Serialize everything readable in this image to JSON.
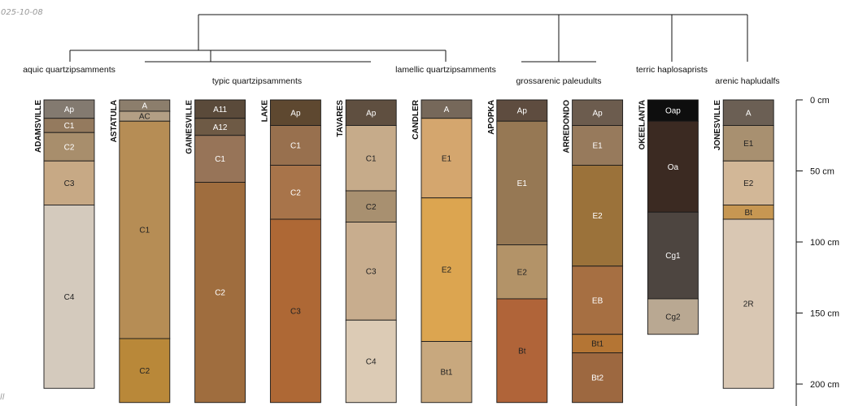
{
  "corner_text_top": "025-10-08",
  "corner_text_bottom": "ll",
  "depth_axis": {
    "max_cm": 213,
    "ticks": [
      {
        "value": 0,
        "label": "0 cm"
      },
      {
        "value": 50,
        "label": "50 cm"
      },
      {
        "value": 100,
        "label": "100 cm"
      },
      {
        "value": 150,
        "label": "150 cm"
      },
      {
        "value": 200,
        "label": "200 cm"
      }
    ]
  },
  "groups": [
    {
      "name": "aquic quartzipsamments"
    },
    {
      "name": "typic quartzipsamments"
    },
    {
      "name": "lamellic quartzipsamments"
    },
    {
      "name": "grossarenic paleudults"
    },
    {
      "name": "terric haplosaprists"
    },
    {
      "name": "arenic hapludalfs"
    }
  ],
  "profiles": [
    {
      "name": "ADAMSVILLE",
      "horizons": [
        {
          "name": "Ap",
          "top": 0,
          "bottom": 13,
          "color": "#837a70",
          "text_color": "#ffffff"
        },
        {
          "name": "C1",
          "top": 13,
          "bottom": 23,
          "color": "#947a5e",
          "text_color": "#ffffff"
        },
        {
          "name": "C2",
          "top": 23,
          "bottom": 43,
          "color": "#a88e6c",
          "text_color": "#ffffff"
        },
        {
          "name": "C3",
          "top": 43,
          "bottom": 74,
          "color": "#c7a985",
          "text_color": "#222222"
        },
        {
          "name": "C4",
          "top": 74,
          "bottom": 203,
          "color": "#d4cabd",
          "text_color": "#222222"
        }
      ]
    },
    {
      "name": "ASTATULA",
      "horizons": [
        {
          "name": "A",
          "top": 0,
          "bottom": 8,
          "color": "#8c7e6c",
          "text_color": "#ffffff"
        },
        {
          "name": "AC",
          "top": 8,
          "bottom": 15,
          "color": "#b39f85",
          "text_color": "#222222"
        },
        {
          "name": "C1",
          "top": 15,
          "bottom": 168,
          "color": "#b68d55",
          "text_color": "#222222"
        },
        {
          "name": "C2",
          "top": 168,
          "bottom": 213,
          "color": "#b98839",
          "text_color": "#222222"
        }
      ]
    },
    {
      "name": "GAINESVILLE",
      "horizons": [
        {
          "name": "A11",
          "top": 0,
          "bottom": 13,
          "color": "#5a4a3a",
          "text_color": "#ffffff"
        },
        {
          "name": "A12",
          "top": 13,
          "bottom": 25,
          "color": "#6e5a45",
          "text_color": "#ffffff"
        },
        {
          "name": "C1",
          "top": 25,
          "bottom": 58,
          "color": "#977458",
          "text_color": "#ffffff"
        },
        {
          "name": "C2",
          "top": 58,
          "bottom": 213,
          "color": "#9f6d3e",
          "text_color": "#ffffff"
        }
      ]
    },
    {
      "name": "LAKE",
      "horizons": [
        {
          "name": "Ap",
          "top": 0,
          "bottom": 18,
          "color": "#5e4830",
          "text_color": "#ffffff"
        },
        {
          "name": "C1",
          "top": 18,
          "bottom": 46,
          "color": "#98704e",
          "text_color": "#ffffff"
        },
        {
          "name": "C2",
          "top": 46,
          "bottom": 84,
          "color": "#a8744a",
          "text_color": "#ffffff"
        },
        {
          "name": "C3",
          "top": 84,
          "bottom": 213,
          "color": "#ae6835",
          "text_color": "#222222"
        }
      ]
    },
    {
      "name": "TAVARES",
      "horizons": [
        {
          "name": "Ap",
          "top": 0,
          "bottom": 18,
          "color": "#5f4f40",
          "text_color": "#ffffff"
        },
        {
          "name": "C1",
          "top": 18,
          "bottom": 64,
          "color": "#c6ab8a",
          "text_color": "#222222"
        },
        {
          "name": "C2",
          "top": 64,
          "bottom": 86,
          "color": "#a89070",
          "text_color": "#222222"
        },
        {
          "name": "C3",
          "top": 86,
          "bottom": 155,
          "color": "#c8ad8e",
          "text_color": "#222222"
        },
        {
          "name": "C4",
          "top": 155,
          "bottom": 213,
          "color": "#dccbb5",
          "text_color": "#222222"
        }
      ]
    },
    {
      "name": "CANDLER",
      "horizons": [
        {
          "name": "A",
          "top": 0,
          "bottom": 13,
          "color": "#76685a",
          "text_color": "#ffffff"
        },
        {
          "name": "E1",
          "top": 13,
          "bottom": 69,
          "color": "#d4a66e",
          "text_color": "#222222"
        },
        {
          "name": "E2",
          "top": 69,
          "bottom": 170,
          "color": "#dca550",
          "text_color": "#222222"
        },
        {
          "name": "Bt1",
          "top": 170,
          "bottom": 213,
          "color": "#c8a87e",
          "text_color": "#222222"
        }
      ]
    },
    {
      "name": "APOPKA",
      "horizons": [
        {
          "name": "Ap",
          "top": 0,
          "bottom": 15,
          "color": "#5e4c3f",
          "text_color": "#ffffff"
        },
        {
          "name": "E1",
          "top": 15,
          "bottom": 102,
          "color": "#967854",
          "text_color": "#ffffff"
        },
        {
          "name": "E2",
          "top": 102,
          "bottom": 140,
          "color": "#b39368",
          "text_color": "#222222"
        },
        {
          "name": "Bt",
          "top": 140,
          "bottom": 213,
          "color": "#b06439",
          "text_color": "#222222"
        }
      ]
    },
    {
      "name": "ARREDONDO",
      "horizons": [
        {
          "name": "Ap",
          "top": 0,
          "bottom": 18,
          "color": "#6c5c4e",
          "text_color": "#ffffff"
        },
        {
          "name": "E1",
          "top": 18,
          "bottom": 46,
          "color": "#977a5c",
          "text_color": "#ffffff"
        },
        {
          "name": "E2",
          "top": 46,
          "bottom": 117,
          "color": "#9b723a",
          "text_color": "#ffffff"
        },
        {
          "name": "EB",
          "top": 117,
          "bottom": 165,
          "color": "#a66f42",
          "text_color": "#ffffff"
        },
        {
          "name": "Bt1",
          "top": 165,
          "bottom": 178,
          "color": "#b47534",
          "text_color": "#222222"
        },
        {
          "name": "Bt2",
          "top": 178,
          "bottom": 213,
          "color": "#9d6840",
          "text_color": "#ffffff"
        }
      ]
    },
    {
      "name": "OKEELANTA",
      "horizons": [
        {
          "name": "Oap",
          "top": 0,
          "bottom": 15,
          "color": "#0e0e0e",
          "text_color": "#ffffff"
        },
        {
          "name": "Oa",
          "top": 15,
          "bottom": 79,
          "color": "#3b2a22",
          "text_color": "#ffffff"
        },
        {
          "name": "Cg1",
          "top": 79,
          "bottom": 140,
          "color": "#4d4540",
          "text_color": "#ffffff"
        },
        {
          "name": "Cg2",
          "top": 140,
          "bottom": 165,
          "color": "#b9a892",
          "text_color": "#222222"
        }
      ]
    },
    {
      "name": "JONESVILLE",
      "horizons": [
        {
          "name": "A",
          "top": 0,
          "bottom": 18,
          "color": "#6b5f54",
          "text_color": "#ffffff"
        },
        {
          "name": "E1",
          "top": 18,
          "bottom": 43,
          "color": "#a89070",
          "text_color": "#222222"
        },
        {
          "name": "E2",
          "top": 43,
          "bottom": 74,
          "color": "#d2b797",
          "text_color": "#222222"
        },
        {
          "name": "Bt",
          "top": 74,
          "bottom": 84,
          "color": "#c79752",
          "text_color": "#222222"
        },
        {
          "name": "2R",
          "top": 84,
          "bottom": 203,
          "color": "#d9c7b3",
          "text_color": "#222222"
        }
      ]
    }
  ]
}
